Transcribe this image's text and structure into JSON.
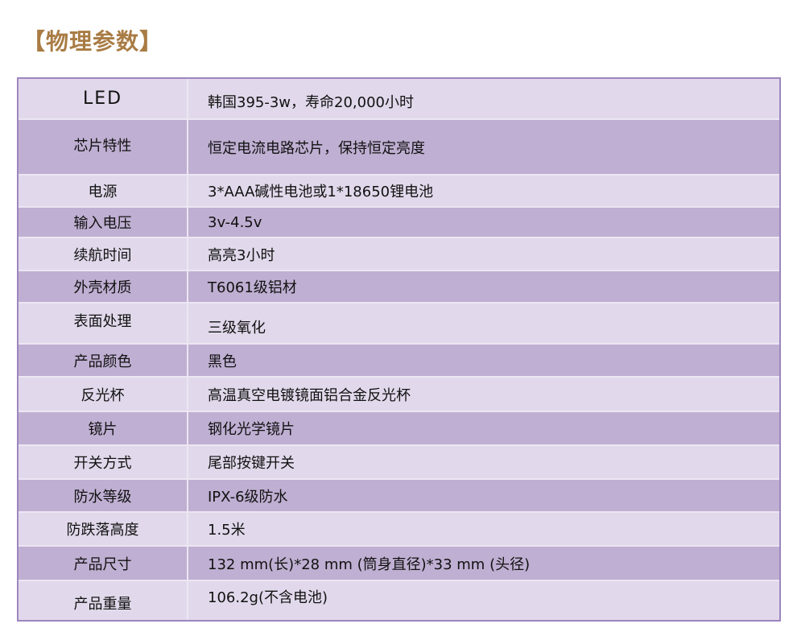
{
  "title": "【物理参数】",
  "rows": [
    {
      "label": "LED",
      "value": "韩国395-3w，寿命20,000小时"
    },
    {
      "label": "芯片特性",
      "value": "恒定电流电路芯片，保持恒定亮度"
    },
    {
      "label": "电源",
      "value": "3*AAA碱性电池或1*18650锂电池"
    },
    {
      "label": "输入电压",
      "value": "3v-4.5v"
    },
    {
      "label": "续航时间",
      "value": "高亮3小时"
    },
    {
      "label": "外壳材质",
      "value": "T6061级铝材"
    },
    {
      "label": "表面处理",
      "value": "三级氧化"
    },
    {
      "label": "产品颜色",
      "value": "黑色"
    },
    {
      "label": "反光杯",
      "value": "高温真空电镀镜面铝合金反光杯"
    },
    {
      "label": "镜片",
      "value": "钢化光学镜片"
    },
    {
      "label": "开关方式",
      "value": "尾部按键开关"
    },
    {
      "label": "防水等级",
      "value": "IPX-6级防水"
    },
    {
      "label": "防跌落高度",
      "value": "1.5米"
    },
    {
      "label": "产品尺寸",
      "value": "132 mm(长)*28 mm (筒身直径)*33 mm (头径)"
    },
    {
      "label": "产品重量",
      "value": "106.2g(不含电池)"
    }
  ],
  "colors": {
    "title": "#a97c45",
    "row_light": "#e1d9eb",
    "row_dark": "#bfafd2",
    "border": "#9d86bf"
  }
}
